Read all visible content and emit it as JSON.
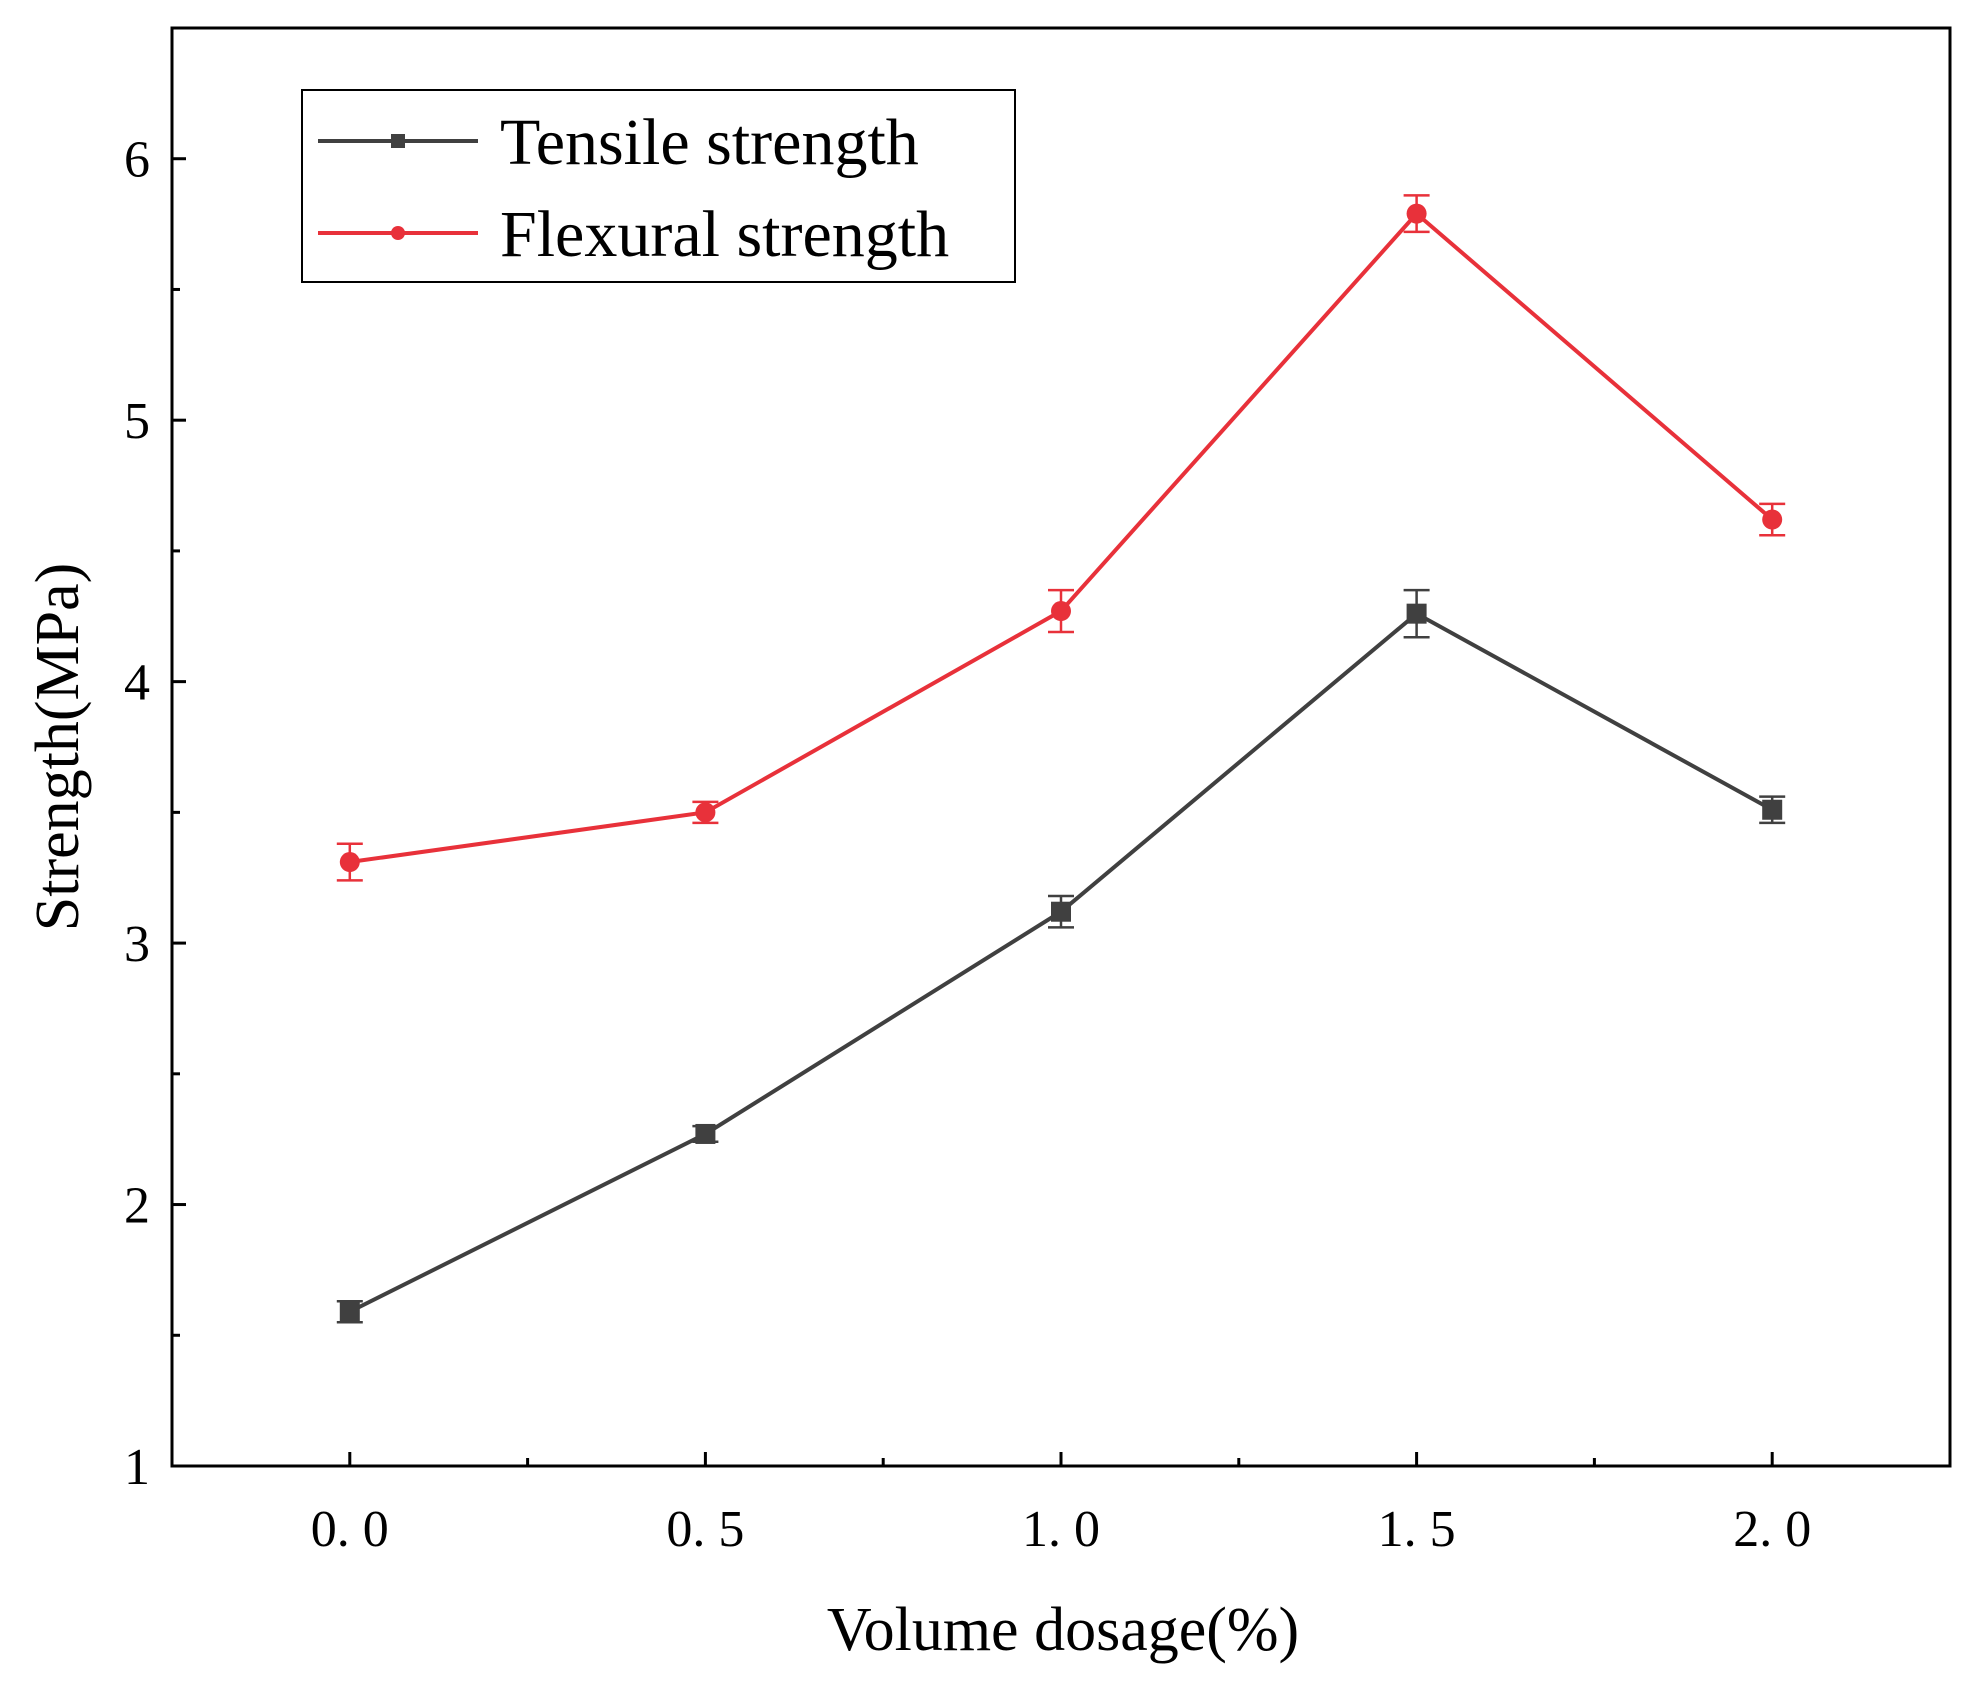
{
  "chart_data": {
    "type": "line",
    "title": "",
    "xlabel": "Volume dosage(%)",
    "ylabel": "Strength(MPa)",
    "x": [
      0.0,
      0.5,
      1.0,
      1.5,
      2.0
    ],
    "x_tick_labels": [
      "0. 0",
      "0. 5",
      "1. 0",
      "1. 5",
      "2. 0"
    ],
    "y_ticks": [
      1,
      2,
      3,
      4,
      5,
      6
    ],
    "y_tick_labels": [
      "1",
      "2",
      "3",
      "4",
      "5",
      "6"
    ],
    "xlim": [
      -0.25,
      2.25
    ],
    "ylim": [
      1,
      6.5
    ],
    "grid": false,
    "legend_position": "top-left",
    "series": [
      {
        "name": "Tensile strength",
        "color": "#404040",
        "marker": "square",
        "values": [
          1.59,
          2.27,
          3.12,
          4.26,
          3.51
        ],
        "errors": [
          0.04,
          0.03,
          0.06,
          0.09,
          0.05
        ]
      },
      {
        "name": "Flexural strength",
        "color": "#e8313a",
        "marker": "circle",
        "values": [
          3.31,
          3.5,
          4.27,
          5.79,
          4.62
        ],
        "errors": [
          0.07,
          0.04,
          0.08,
          0.07,
          0.06
        ]
      }
    ]
  }
}
